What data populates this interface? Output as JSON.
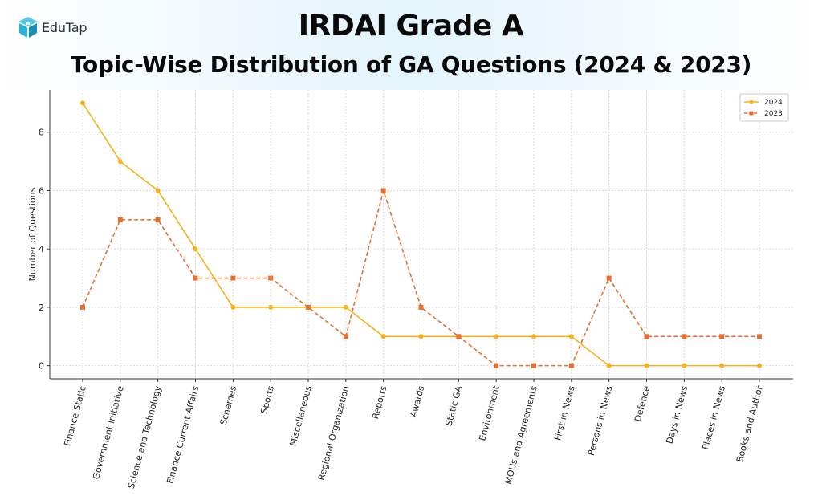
{
  "brand": {
    "name": "EduTap",
    "icon": "edutap-logo-icon",
    "color": "#2bb3d6"
  },
  "header": {
    "title": "IRDAI Grade A",
    "subtitle": "Topic-Wise Distribution of GA Questions (2024 & 2023)"
  },
  "chart_data": {
    "type": "line",
    "title": "",
    "xlabel": "",
    "ylabel": "Number of Questions",
    "ylim": [
      -0.45,
      9.45
    ],
    "yticks": [
      0,
      2,
      4,
      6,
      8
    ],
    "grid": true,
    "legend_position": "top-right",
    "categories": [
      "Finance Static",
      "Government Initiative",
      "Science and Technology",
      "Finance Current Affairs",
      "Schemes",
      "Sports",
      "Miscellaneous",
      "Regional Organization",
      "Reports",
      "Awards",
      "Static GA",
      "Environment",
      "MOUs and Agreements",
      "First in News",
      "Persons in News",
      "Defence",
      "Days in News",
      "Places in News",
      "Books and Author"
    ],
    "series": [
      {
        "name": "2024",
        "color": "#f5b21a",
        "line_style": "solid",
        "marker": "circle",
        "values": [
          9,
          7,
          6,
          4,
          2,
          2,
          2,
          2,
          1,
          1,
          1,
          1,
          1,
          1,
          0,
          0,
          0,
          0,
          0
        ]
      },
      {
        "name": "2023",
        "color": "#e5702f",
        "line_style": "dashed",
        "marker": "square",
        "values": [
          2,
          5,
          5,
          3,
          3,
          3,
          2,
          1,
          6,
          2,
          1,
          0,
          0,
          0,
          3,
          1,
          1,
          1,
          1
        ]
      }
    ]
  }
}
